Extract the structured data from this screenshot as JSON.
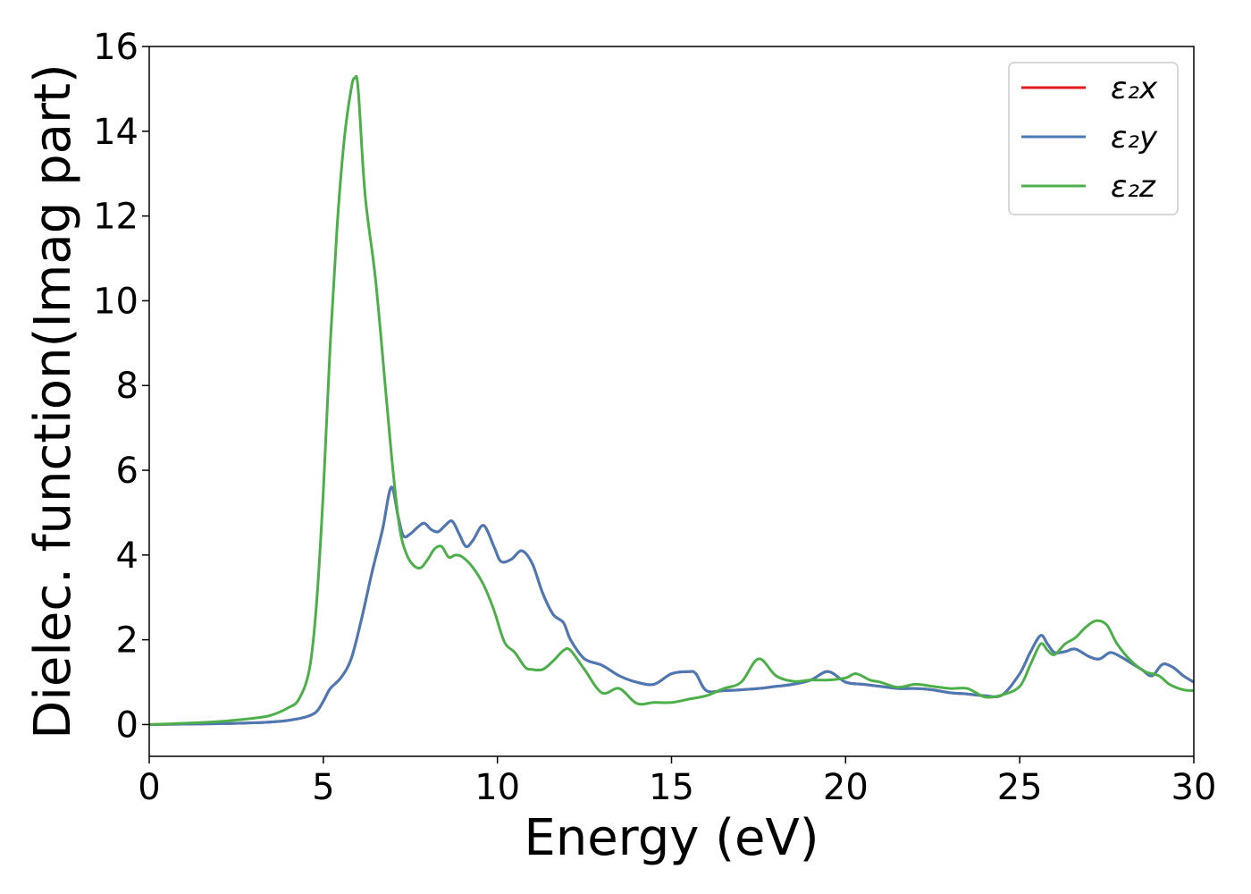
{
  "chart_data": {
    "type": "line",
    "title": "",
    "xlabel": "Energy (eV)",
    "ylabel": "Dielec. function(Imag part)",
    "xlim": [
      0,
      30
    ],
    "ylim": [
      -0.75,
      16
    ],
    "xticks": [
      0,
      5,
      10,
      15,
      20,
      25,
      30
    ],
    "yticks": [
      0,
      2,
      4,
      6,
      8,
      10,
      12,
      14,
      16
    ],
    "grid": false,
    "legend_position": "top-right",
    "series": [
      {
        "name": "ε₂x",
        "color": "#e41a1c",
        "x": [
          0,
          1,
          2,
          3,
          3.5,
          4,
          4.5,
          4.8,
          5.0,
          5.2,
          5.5,
          5.8,
          6.1,
          6.4,
          6.7,
          6.95,
          7.15,
          7.3,
          7.5,
          7.7,
          7.9,
          8.1,
          8.3,
          8.5,
          8.7,
          8.9,
          9.1,
          9.3,
          9.6,
          9.9,
          10.1,
          10.4,
          10.7,
          11.0,
          11.3,
          11.6,
          11.9,
          12.1,
          12.5,
          13.0,
          13.5,
          14.0,
          14.5,
          15.0,
          15.5,
          15.7,
          16.0,
          16.5,
          17.0,
          17.5,
          18.0,
          18.5,
          19.0,
          19.5,
          20.0,
          20.5,
          21.0,
          21.5,
          22.0,
          22.5,
          23.0,
          23.5,
          24.0,
          24.5,
          25.0,
          25.3,
          25.6,
          25.8,
          26.0,
          26.3,
          26.6,
          27.0,
          27.3,
          27.6,
          27.9,
          28.2,
          28.5,
          28.8,
          29.1,
          29.4,
          29.7,
          30.0
        ],
        "y": [
          0.0,
          0.01,
          0.02,
          0.04,
          0.06,
          0.1,
          0.18,
          0.3,
          0.55,
          0.85,
          1.1,
          1.55,
          2.5,
          3.6,
          4.6,
          5.6,
          4.9,
          4.45,
          4.5,
          4.65,
          4.75,
          4.6,
          4.55,
          4.7,
          4.8,
          4.5,
          4.2,
          4.35,
          4.7,
          4.2,
          3.85,
          3.9,
          4.1,
          3.8,
          3.1,
          2.6,
          2.4,
          2.0,
          1.55,
          1.4,
          1.15,
          1.0,
          0.95,
          1.2,
          1.25,
          1.2,
          0.8,
          0.8,
          0.82,
          0.85,
          0.9,
          0.95,
          1.05,
          1.25,
          1.0,
          0.95,
          0.9,
          0.85,
          0.85,
          0.82,
          0.75,
          0.72,
          0.68,
          0.7,
          1.2,
          1.7,
          2.1,
          1.9,
          1.7,
          1.72,
          1.78,
          1.6,
          1.55,
          1.7,
          1.6,
          1.45,
          1.3,
          1.15,
          1.42,
          1.35,
          1.15,
          1.0
        ]
      },
      {
        "name": "ε₂y",
        "color": "#4a7ab5",
        "x": [
          0,
          1,
          2,
          3,
          3.5,
          4,
          4.5,
          4.8,
          5.0,
          5.2,
          5.5,
          5.8,
          6.1,
          6.4,
          6.7,
          6.95,
          7.15,
          7.3,
          7.5,
          7.7,
          7.9,
          8.1,
          8.3,
          8.5,
          8.7,
          8.9,
          9.1,
          9.3,
          9.6,
          9.9,
          10.1,
          10.4,
          10.7,
          11.0,
          11.3,
          11.6,
          11.9,
          12.1,
          12.5,
          13.0,
          13.5,
          14.0,
          14.5,
          15.0,
          15.5,
          15.7,
          16.0,
          16.5,
          17.0,
          17.5,
          18.0,
          18.5,
          19.0,
          19.5,
          20.0,
          20.5,
          21.0,
          21.5,
          22.0,
          22.5,
          23.0,
          23.5,
          24.0,
          24.5,
          25.0,
          25.3,
          25.6,
          25.8,
          26.0,
          26.3,
          26.6,
          27.0,
          27.3,
          27.6,
          27.9,
          28.2,
          28.5,
          28.8,
          29.1,
          29.4,
          29.7,
          30.0
        ],
        "y": [
          0.0,
          0.01,
          0.02,
          0.04,
          0.06,
          0.1,
          0.18,
          0.3,
          0.55,
          0.85,
          1.1,
          1.55,
          2.5,
          3.6,
          4.6,
          5.6,
          4.9,
          4.45,
          4.5,
          4.65,
          4.75,
          4.6,
          4.55,
          4.7,
          4.8,
          4.5,
          4.2,
          4.35,
          4.7,
          4.2,
          3.85,
          3.9,
          4.1,
          3.8,
          3.1,
          2.6,
          2.4,
          2.0,
          1.55,
          1.4,
          1.15,
          1.0,
          0.95,
          1.2,
          1.25,
          1.2,
          0.8,
          0.8,
          0.82,
          0.85,
          0.9,
          0.95,
          1.05,
          1.25,
          1.0,
          0.95,
          0.9,
          0.85,
          0.85,
          0.82,
          0.75,
          0.72,
          0.68,
          0.7,
          1.2,
          1.7,
          2.1,
          1.9,
          1.7,
          1.72,
          1.78,
          1.6,
          1.55,
          1.7,
          1.6,
          1.45,
          1.3,
          1.15,
          1.42,
          1.35,
          1.15,
          1.0
        ]
      },
      {
        "name": "ε₂z",
        "color": "#4daf4a",
        "x": [
          0,
          1,
          2,
          3,
          3.5,
          4.0,
          4.3,
          4.6,
          4.8,
          5.0,
          5.2,
          5.4,
          5.6,
          5.8,
          5.9,
          6.0,
          6.2,
          6.5,
          6.8,
          7.0,
          7.2,
          7.4,
          7.6,
          7.8,
          8.0,
          8.2,
          8.4,
          8.6,
          8.8,
          9.0,
          9.3,
          9.6,
          9.9,
          10.2,
          10.5,
          10.8,
          11.0,
          11.3,
          11.6,
          11.9,
          12.1,
          12.5,
          13.0,
          13.5,
          14.0,
          14.5,
          15.0,
          15.5,
          16.0,
          16.5,
          17.0,
          17.5,
          18.0,
          18.5,
          19.0,
          19.5,
          20.0,
          20.3,
          20.7,
          21.0,
          21.5,
          22.0,
          22.5,
          23.0,
          23.5,
          24.0,
          24.5,
          25.0,
          25.3,
          25.6,
          25.8,
          26.0,
          26.3,
          26.6,
          26.9,
          27.2,
          27.5,
          27.8,
          28.2,
          28.6,
          29.0,
          29.3,
          29.7,
          30.0
        ],
        "y": [
          0.0,
          0.03,
          0.07,
          0.15,
          0.22,
          0.4,
          0.6,
          1.3,
          2.8,
          5.5,
          9.0,
          11.8,
          13.8,
          15.0,
          15.25,
          15.0,
          12.5,
          10.5,
          7.8,
          6.0,
          4.6,
          4.0,
          3.75,
          3.7,
          3.9,
          4.15,
          4.2,
          3.95,
          4.0,
          3.95,
          3.7,
          3.3,
          2.7,
          1.95,
          1.7,
          1.35,
          1.3,
          1.3,
          1.5,
          1.75,
          1.75,
          1.3,
          0.75,
          0.85,
          0.5,
          0.52,
          0.52,
          0.6,
          0.68,
          0.85,
          1.0,
          1.55,
          1.15,
          1.02,
          1.05,
          1.05,
          1.1,
          1.2,
          1.05,
          1.0,
          0.88,
          0.95,
          0.9,
          0.85,
          0.85,
          0.65,
          0.7,
          0.9,
          1.4,
          1.9,
          1.75,
          1.65,
          1.9,
          2.05,
          2.3,
          2.45,
          2.35,
          1.9,
          1.5,
          1.25,
          1.15,
          0.95,
          0.82,
          0.8
        ]
      }
    ]
  }
}
